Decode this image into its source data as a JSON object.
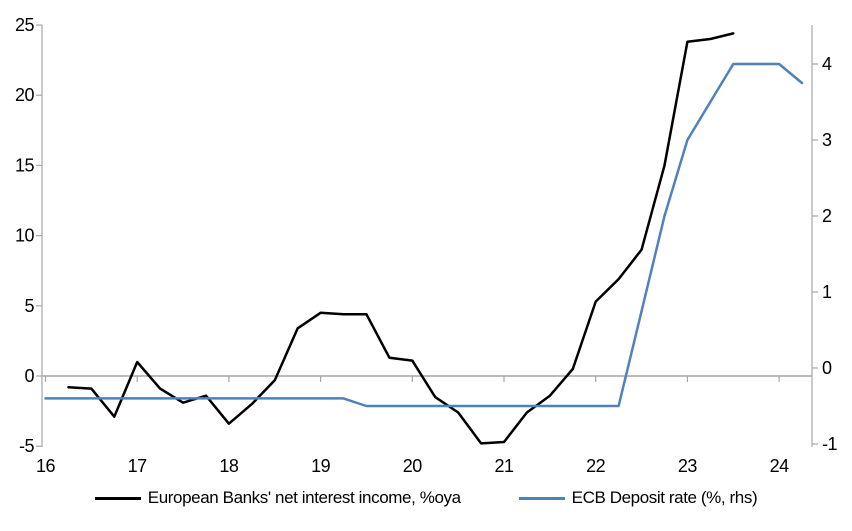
{
  "chart_data": {
    "type": "line",
    "title": "",
    "background": "#ffffff",
    "axis_color": "#a6a6a6",
    "zero_line_color": "#a6a6a6",
    "grid": false,
    "legend_position": "bottom-center",
    "x_tick_labels": [
      "16",
      "17",
      "18",
      "19",
      "20",
      "21",
      "22",
      "23",
      "24"
    ],
    "x_range_years": [
      2016,
      2024.35
    ],
    "left_axis": {
      "ticks": [
        25,
        20,
        15,
        10,
        5,
        0,
        -5
      ],
      "range": [
        -5,
        25
      ]
    },
    "right_axis": {
      "ticks": [
        4,
        3,
        2,
        1,
        0,
        -1
      ],
      "range": [
        -1.05,
        4.5
      ]
    },
    "series": [
      {
        "name": "European Banks' net interest income, %oya",
        "axis": "left",
        "color": "#000000",
        "frequency": "quarterly",
        "x": [
          2016.25,
          2016.5,
          2016.75,
          2017,
          2017.25,
          2017.5,
          2017.75,
          2018,
          2018.25,
          2018.5,
          2018.75,
          2019,
          2019.25,
          2019.5,
          2019.75,
          2020,
          2020.25,
          2020.5,
          2020.75,
          2021,
          2021.25,
          2021.5,
          2021.75,
          2022,
          2022.25,
          2022.5,
          2022.75,
          2023,
          2023.25,
          2023.5
        ],
        "values": [
          -0.8,
          -0.9,
          -2.9,
          1.0,
          -0.9,
          -1.9,
          -1.4,
          -3.4,
          -2.0,
          -0.3,
          3.4,
          4.5,
          4.4,
          4.4,
          1.3,
          1.1,
          -1.5,
          -2.6,
          -4.8,
          -4.7,
          -2.6,
          -1.4,
          0.5,
          5.3,
          6.9,
          9.0,
          15.0,
          23.8,
          24.0,
          24.4
        ]
      },
      {
        "name": "ECB Deposit rate (%, rhs)",
        "axis": "right",
        "color": "#4f81bd",
        "frequency": "quarterly",
        "x": [
          2016,
          2016.25,
          2016.5,
          2016.75,
          2017,
          2017.25,
          2017.5,
          2017.75,
          2018,
          2018.25,
          2018.5,
          2018.75,
          2019,
          2019.25,
          2019.5,
          2019.75,
          2020,
          2020.25,
          2020.5,
          2020.75,
          2021,
          2021.25,
          2021.5,
          2021.75,
          2022,
          2022.25,
          2022.5,
          2022.75,
          2023,
          2023.25,
          2023.5,
          2023.75,
          2024,
          2024.25
        ],
        "values": [
          -0.4,
          -0.4,
          -0.4,
          -0.4,
          -0.4,
          -0.4,
          -0.4,
          -0.4,
          -0.4,
          -0.4,
          -0.4,
          -0.4,
          -0.4,
          -0.4,
          -0.5,
          -0.5,
          -0.5,
          -0.5,
          -0.5,
          -0.5,
          -0.5,
          -0.5,
          -0.5,
          -0.5,
          -0.5,
          -0.5,
          0.75,
          2.0,
          3.0,
          3.5,
          4.0,
          4.0,
          4.0,
          3.75
        ]
      }
    ],
    "legend": [
      "European Banks' net interest income, %oya",
      "ECB Deposit rate (%, rhs)"
    ]
  }
}
